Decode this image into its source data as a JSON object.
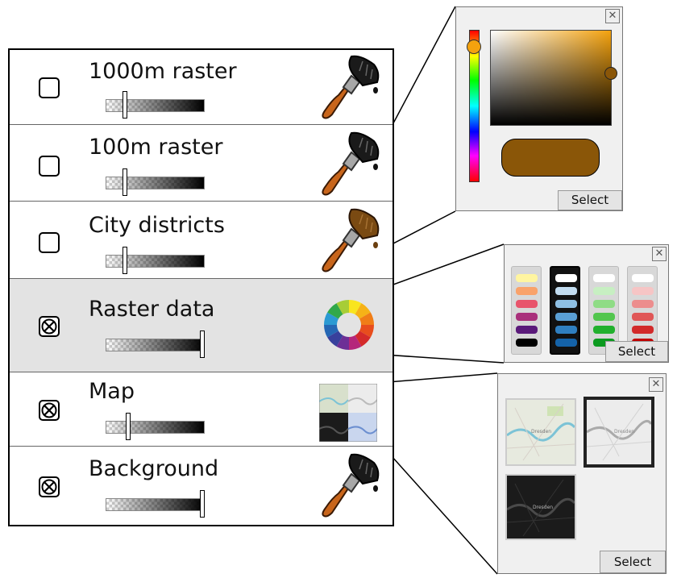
{
  "layers": [
    {
      "label": "1000m raster",
      "checked": false,
      "opacity": 0.2,
      "icon": "paintbrush-icon"
    },
    {
      "label": "100m raster",
      "checked": false,
      "opacity": 0.2,
      "icon": "paintbrush-icon"
    },
    {
      "label": "City districts",
      "checked": false,
      "opacity": 0.2,
      "icon": "paintbrush-icon"
    },
    {
      "label": "Raster data",
      "checked": true,
      "opacity": 1.0,
      "icon": "color-wheel-icon"
    },
    {
      "label": "Map",
      "checked": true,
      "opacity": 0.25,
      "icon": "map-tiles-icon"
    },
    {
      "label": "Background",
      "checked": true,
      "opacity": 1.0,
      "icon": "paintbrush-icon"
    }
  ],
  "color_picker": {
    "select_label": "Select",
    "close_label": "✕",
    "selected_color": "#8a5608"
  },
  "palette_picker": {
    "select_label": "Select",
    "close_label": "✕",
    "palettes": [
      [
        "#fff5a0",
        "#f9a26a",
        "#e8546b",
        "#a9307b",
        "#5a1a7a",
        "#000000"
      ],
      [
        "#ffffff",
        "#c2dcf0",
        "#8ebfe3",
        "#5a9fd4",
        "#2f7fc0",
        "#1462a8"
      ],
      [
        "#ffffff",
        "#c7efc2",
        "#8fdc86",
        "#52c64e",
        "#21b02d",
        "#0b9a1f"
      ],
      [
        "#ffffff",
        "#f6c5c5",
        "#ec8d8d",
        "#e05656",
        "#d22a2a",
        "#c00000"
      ]
    ]
  },
  "map_picker": {
    "select_label": "Select",
    "close_label": "✕",
    "city_label": "Dresden"
  }
}
